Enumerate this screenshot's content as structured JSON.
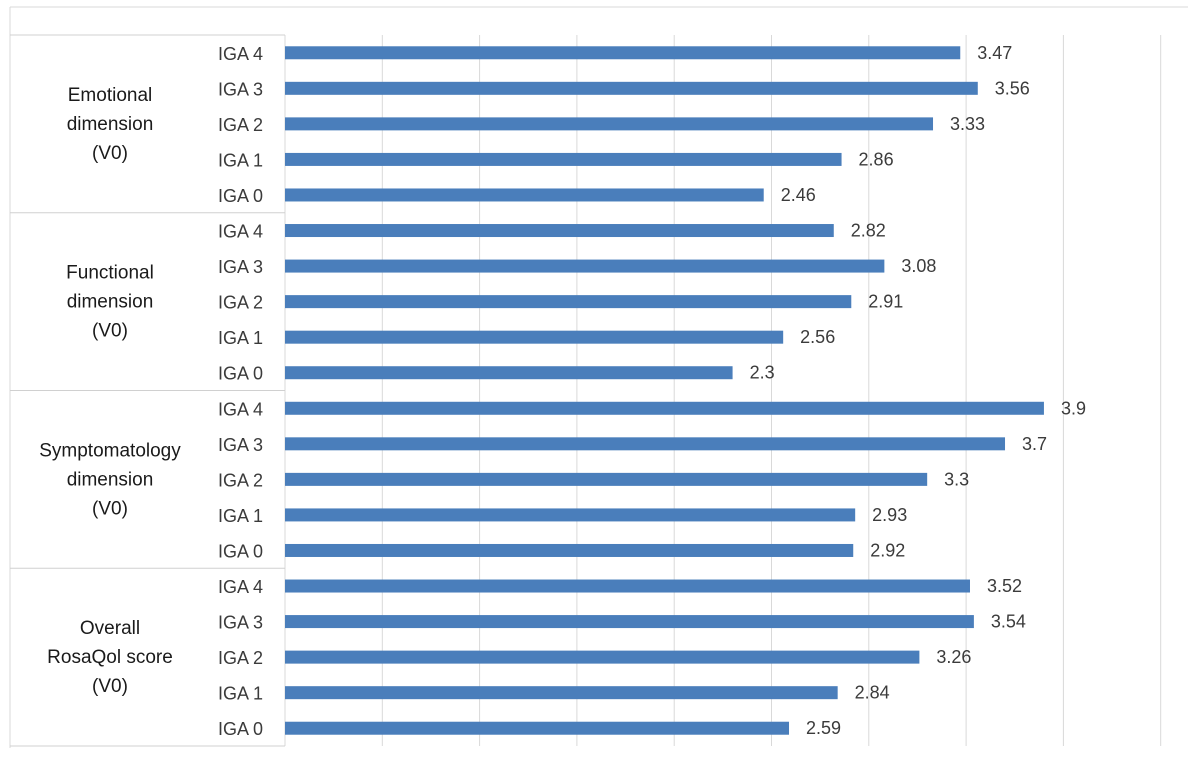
{
  "chart_data": {
    "type": "bar",
    "orientation": "horizontal",
    "title": "",
    "xlabel": "",
    "ylabel": "",
    "xlim": [
      0,
      4.5
    ],
    "grid": true,
    "legend": "none",
    "bar_color": "#4a7ebb",
    "groups": [
      {
        "label_lines": [
          "Emotional",
          "dimension",
          "(V0)"
        ],
        "categories": [
          "IGA 4",
          "IGA 3",
          "IGA 2",
          "IGA 1",
          "IGA 0"
        ],
        "values": [
          3.47,
          3.56,
          3.33,
          2.86,
          2.46
        ],
        "value_labels": [
          "3.47",
          "3.56",
          "3.33",
          "2.86",
          "2.46"
        ]
      },
      {
        "label_lines": [
          "Functional",
          "dimension",
          "(V0)"
        ],
        "categories": [
          "IGA 4",
          "IGA 3",
          "IGA 2",
          "IGA 1",
          "IGA 0"
        ],
        "values": [
          2.82,
          3.08,
          2.91,
          2.56,
          2.3
        ],
        "value_labels": [
          "2.82",
          "3.08",
          "2.91",
          "2.56",
          "2.3"
        ]
      },
      {
        "label_lines": [
          "Symptomatology",
          "dimension",
          "(V0)"
        ],
        "categories": [
          "IGA 4",
          "IGA 3",
          "IGA 2",
          "IGA 1",
          "IGA 0"
        ],
        "values": [
          3.9,
          3.7,
          3.3,
          2.93,
          2.92
        ],
        "value_labels": [
          "3.9",
          "3.7",
          "3.3",
          "2.93",
          "2.92"
        ]
      },
      {
        "label_lines": [
          "Overall",
          "RosaQol score",
          "(V0)"
        ],
        "categories": [
          "IGA 4",
          "IGA 3",
          "IGA 2",
          "IGA 1",
          "IGA 0"
        ],
        "values": [
          3.52,
          3.54,
          3.26,
          2.84,
          2.59
        ],
        "value_labels": [
          "3.52",
          "3.54",
          "3.26",
          "2.84",
          "2.59"
        ]
      }
    ]
  }
}
